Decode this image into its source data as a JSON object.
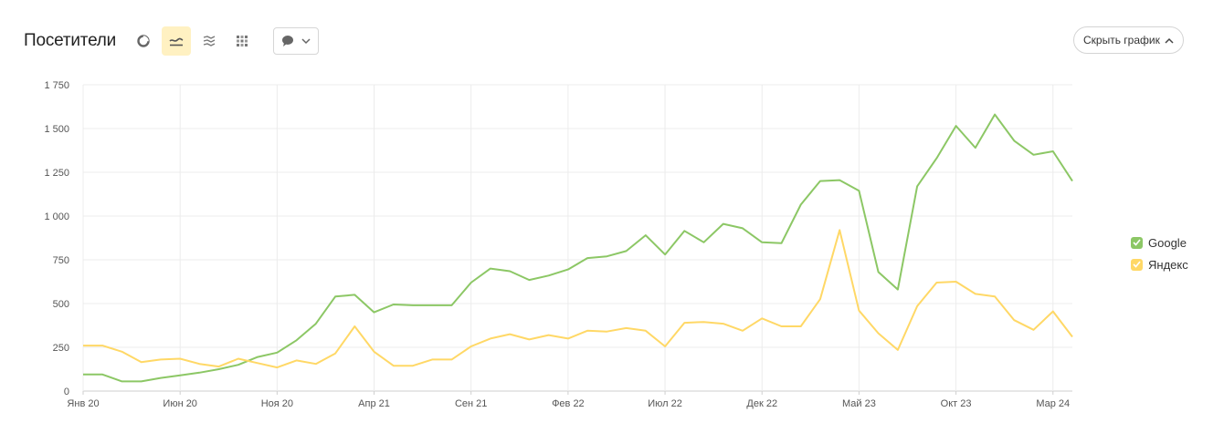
{
  "header": {
    "title": "Посетители",
    "hide_chart_label": "Скрыть график"
  },
  "toolbar_icons": [
    "pie-chart-icon",
    "line-chart-icon",
    "stacked-area-icon",
    "heatmap-icon",
    "comment-icon",
    "chevron-down-icon"
  ],
  "colors": {
    "google": "#8cc765",
    "yandex": "#ffd866",
    "active_button": "#fff1c2",
    "grid": "#ececec"
  },
  "legend": [
    {
      "name": "Google",
      "color": "#8cc765"
    },
    {
      "name": "Яндекс",
      "color": "#ffd866"
    }
  ],
  "chart_data": {
    "type": "line",
    "ylim": [
      0,
      1750
    ],
    "y_ticks": [
      0,
      250,
      500,
      750,
      1000,
      1250,
      1500,
      1750
    ],
    "y_tick_labels": [
      "0",
      "250",
      "500",
      "750",
      "1 000",
      "1 250",
      "1 500",
      "1 750"
    ],
    "x_tick_labels": [
      {
        "label": "Янв 20",
        "index": 0
      },
      {
        "label": "Июн 20",
        "index": 5
      },
      {
        "label": "Ноя 20",
        "index": 10
      },
      {
        "label": "Апр 21",
        "index": 15
      },
      {
        "label": "Сен 21",
        "index": 20
      },
      {
        "label": "Фев 22",
        "index": 25
      },
      {
        "label": "Июл 22",
        "index": 30
      },
      {
        "label": "Дек 22",
        "index": 35
      },
      {
        "label": "Май 23",
        "index": 40
      },
      {
        "label": "Окт 23",
        "index": 45
      },
      {
        "label": "Мар 24",
        "index": 50
      }
    ],
    "grid": true,
    "legend_position": "right",
    "series": [
      {
        "name": "Google",
        "color": "#8cc765",
        "values": [
          95,
          95,
          55,
          55,
          75,
          90,
          105,
          125,
          150,
          195,
          220,
          290,
          385,
          540,
          550,
          450,
          495,
          490,
          490,
          490,
          620,
          700,
          685,
          635,
          660,
          695,
          760,
          770,
          800,
          890,
          780,
          915,
          850,
          955,
          930,
          850,
          845,
          1065,
          1200,
          1205,
          1145,
          680,
          580,
          1170,
          1330,
          1515,
          1390,
          1580,
          1430,
          1350,
          1370,
          1200
        ]
      },
      {
        "name": "Яндекс",
        "color": "#ffd866",
        "values": [
          260,
          260,
          225,
          165,
          180,
          185,
          155,
          140,
          185,
          160,
          135,
          175,
          155,
          215,
          370,
          225,
          145,
          145,
          180,
          180,
          255,
          300,
          325,
          295,
          320,
          300,
          345,
          340,
          360,
          345,
          255,
          390,
          395,
          385,
          345,
          415,
          370,
          370,
          525,
          920,
          460,
          330,
          235,
          485,
          620,
          625,
          555,
          540,
          405,
          350,
          455,
          310
        ]
      }
    ]
  }
}
